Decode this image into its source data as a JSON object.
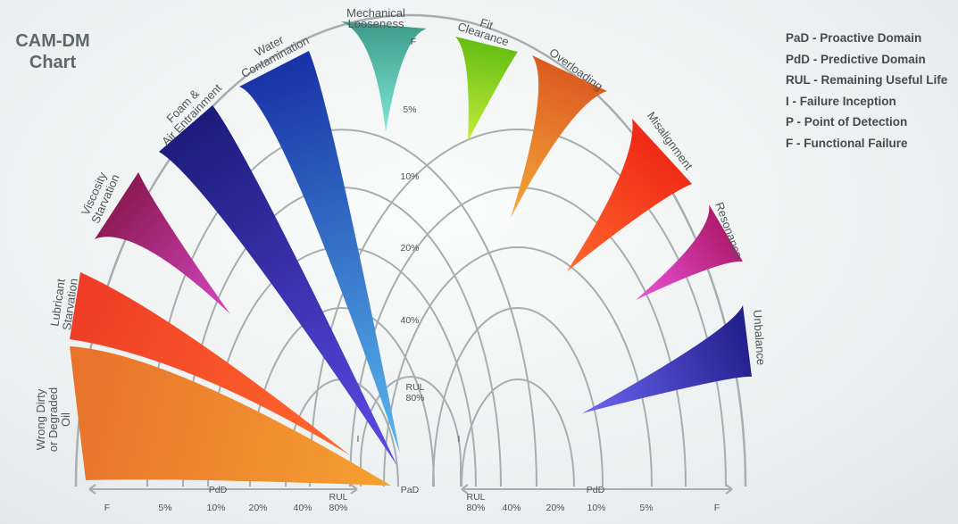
{
  "title_lines": [
    "CAM-DM",
    "Chart"
  ],
  "legend": [
    "PaD - Proactive Domain",
    "PdD - Predictive Domain",
    "RUL - Remaining Useful Life",
    "I - Failure Inception",
    "P - Point of Detection",
    "F - Functional Failure"
  ],
  "ring_labels": [
    "5%",
    "10%",
    "20%",
    "40%"
  ],
  "rul_label": [
    "RUL",
    "80%"
  ],
  "marks": {
    "pad": "PaD",
    "inception": "I",
    "functional_failure": "F"
  },
  "axis_left": {
    "domain_label": "PdD",
    "ticks": [
      "F",
      "5%",
      "10%",
      "20%",
      "40%"
    ],
    "rul": [
      "RUL",
      "80%"
    ]
  },
  "axis_right": {
    "domain_label": "PdD",
    "ticks": [
      "F",
      "5%",
      "10%",
      "20%",
      "40%"
    ],
    "rul": [
      "RUL",
      "80%"
    ]
  },
  "segments": [
    {
      "name": "wrong-dirty-degraded-oil",
      "lines": [
        "Wrong  Dirty",
        "or  Degraded",
        "Oil"
      ],
      "c1": "#e8742c",
      "c2": "#f5a030"
    },
    {
      "name": "lubricant-starvation",
      "lines": [
        "Lubricant",
        "Starvation"
      ],
      "c1": "#ef3d27",
      "c2": "#ff6a2d"
    },
    {
      "name": "viscosity-starvation",
      "lines": [
        "Viscosity",
        "Starvation"
      ],
      "c1": "#8e1a56",
      "c2": "#d447c2"
    },
    {
      "name": "foam-air-entrainment",
      "lines": [
        "Foam &",
        "Air Entrainment"
      ],
      "c1": "#1c1c7c",
      "c2": "#5c4ce6"
    },
    {
      "name": "water-contamination",
      "lines": [
        "Water",
        "Contamination"
      ],
      "c1": "#1833a6",
      "c2": "#58b8ee"
    },
    {
      "name": "mechanical-looseness",
      "lines": [
        "Mechanical",
        "Looseness"
      ],
      "c1": "#3f9c8c",
      "c2": "#7fe8d4"
    },
    {
      "name": "fit-clearance",
      "lines": [
        "Fit",
        "Clearance"
      ],
      "c1": "#66bf12",
      "c2": "#c4ec3c"
    },
    {
      "name": "overloading",
      "lines": [
        "Overloading"
      ],
      "c1": "#dc5c20",
      "c2": "#f4a93a"
    },
    {
      "name": "misalignment",
      "lines": [
        "Misalignment"
      ],
      "c1": "#f02a16",
      "c2": "#ff682e"
    },
    {
      "name": "resonance",
      "lines": [
        "Resonance"
      ],
      "c1": "#b01c6e",
      "c2": "#ec54dc"
    },
    {
      "name": "unbalance",
      "lines": [
        "Unbalance"
      ],
      "c1": "#22208e",
      "c2": "#6c66f2"
    }
  ],
  "colors": {
    "arc": "#a7aeaf",
    "text": "#4b5354"
  }
}
